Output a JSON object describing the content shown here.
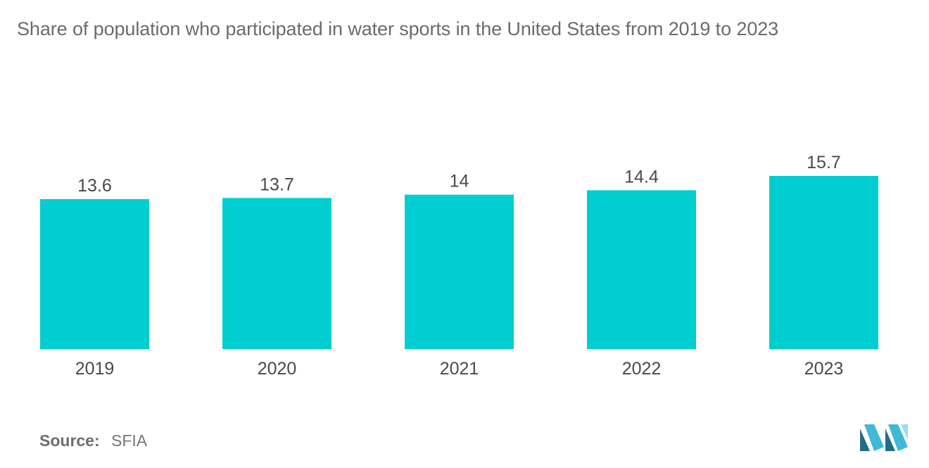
{
  "chart_data": {
    "type": "bar",
    "title": "Share of population who participated in water sports in the United States from 2019 to 2023",
    "categories": [
      "2019",
      "2020",
      "2021",
      "2022",
      "2023"
    ],
    "values": [
      13.6,
      13.7,
      14,
      14.4,
      15.7
    ],
    "value_labels": [
      "13.6",
      "13.7",
      "14",
      "14.4",
      "15.7"
    ],
    "xlabel": "",
    "ylabel": "",
    "ylim": [
      0,
      15.7
    ],
    "grid": false,
    "legend": "none",
    "colors": {
      "bar": "#00CED1",
      "label": "#4a4a4a",
      "title": "#6b6b6b"
    }
  },
  "source": {
    "label": "Source:",
    "value": "SFIA"
  },
  "logo": {
    "icon": "mordor-intelligence-logo-icon",
    "colors": [
      "#1f6f8b",
      "#3fb9d6",
      "#9cdcf0"
    ]
  }
}
